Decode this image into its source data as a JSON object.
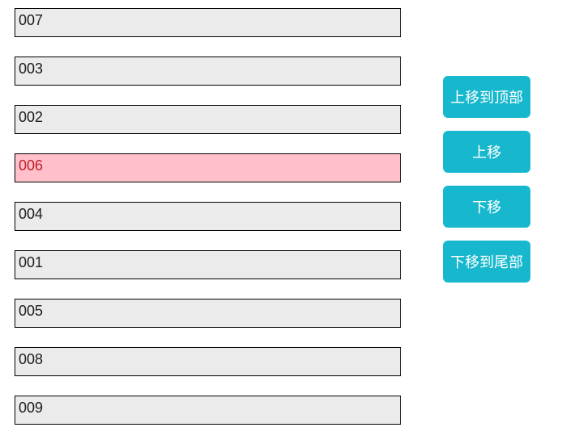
{
  "list": {
    "items": [
      {
        "label": "007",
        "selected": false
      },
      {
        "label": "003",
        "selected": false
      },
      {
        "label": "002",
        "selected": false
      },
      {
        "label": "006",
        "selected": true
      },
      {
        "label": "004",
        "selected": false
      },
      {
        "label": "001",
        "selected": false
      },
      {
        "label": "005",
        "selected": false
      },
      {
        "label": "008",
        "selected": false
      },
      {
        "label": "009",
        "selected": false
      }
    ],
    "item_bg_color": "#ebebeb",
    "item_selected_bg_color": "#ffc0cb",
    "item_border_color": "#000000"
  },
  "buttons": {
    "move_top": "上移到顶部",
    "move_up": "上移",
    "move_down": "下移",
    "move_bottom": "下移到尾部",
    "bg_color": "#17b8ce",
    "text_color": "#ffffff"
  }
}
